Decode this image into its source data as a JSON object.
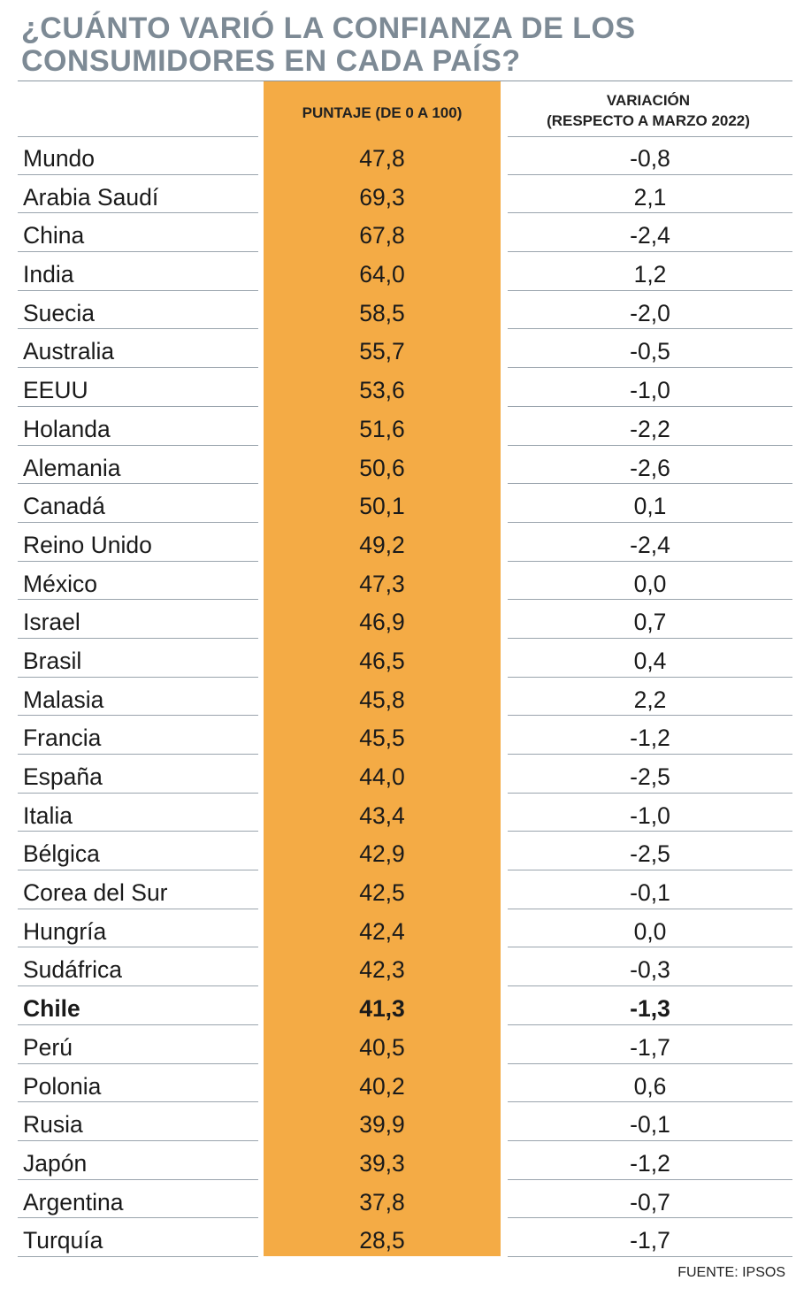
{
  "title": {
    "line1": "¿CUÁNTO VARIÓ LA CONFIANZA DE LOS",
    "line2": "CONSUMIDORES EN CADA PAÍS?"
  },
  "chart_data": {
    "type": "table",
    "columns": [
      "",
      "PUNTAJE (DE 0 A 100)",
      "VARIACIÓN\n(RESPECTO A MARZO 2022)"
    ],
    "header_score": "PUNTAJE (DE 0 A 100)",
    "header_var_line1": "VARIACIÓN",
    "header_var_line2": "(RESPECTO A MARZO 2022)",
    "rows": [
      {
        "country": "Mundo",
        "score": "47,8",
        "variation": "-0,8"
      },
      {
        "country": "Arabia Saudí",
        "score": "69,3",
        "variation": "2,1"
      },
      {
        "country": "China",
        "score": "67,8",
        "variation": "-2,4"
      },
      {
        "country": "India",
        "score": "64,0",
        "variation": "1,2"
      },
      {
        "country": "Suecia",
        "score": "58,5",
        "variation": "-2,0"
      },
      {
        "country": "Australia",
        "score": "55,7",
        "variation": "-0,5"
      },
      {
        "country": "EEUU",
        "score": "53,6",
        "variation": "-1,0"
      },
      {
        "country": "Holanda",
        "score": "51,6",
        "variation": "-2,2"
      },
      {
        "country": "Alemania",
        "score": "50,6",
        "variation": "-2,6"
      },
      {
        "country": "Canadá",
        "score": "50,1",
        "variation": "0,1"
      },
      {
        "country": "Reino Unido",
        "score": "49,2",
        "variation": "-2,4"
      },
      {
        "country": "México",
        "score": "47,3",
        "variation": "0,0"
      },
      {
        "country": "Israel",
        "score": "46,9",
        "variation": "0,7"
      },
      {
        "country": "Brasil",
        "score": "46,5",
        "variation": "0,4"
      },
      {
        "country": "Malasia",
        "score": "45,8",
        "variation": "2,2"
      },
      {
        "country": "Francia",
        "score": "45,5",
        "variation": "-1,2"
      },
      {
        "country": "España",
        "score": "44,0",
        "variation": "-2,5"
      },
      {
        "country": "Italia",
        "score": "43,4",
        "variation": "-1,0"
      },
      {
        "country": "Bélgica",
        "score": "42,9",
        "variation": "-2,5"
      },
      {
        "country": "Corea del Sur",
        "score": "42,5",
        "variation": "-0,1"
      },
      {
        "country": "Hungría",
        "score": "42,4",
        "variation": "0,0"
      },
      {
        "country": "Sudáfrica",
        "score": "42,3",
        "variation": "-0,3"
      },
      {
        "country": "Chile",
        "score": "41,3",
        "variation": "-1,3",
        "bold": true
      },
      {
        "country": "Perú",
        "score": "40,5",
        "variation": "-1,7"
      },
      {
        "country": "Polonia",
        "score": "40,2",
        "variation": "0,6"
      },
      {
        "country": "Rusia",
        "score": "39,9",
        "variation": "-0,1"
      },
      {
        "country": "Japón",
        "score": "39,3",
        "variation": "-1,2"
      },
      {
        "country": "Argentina",
        "score": "37,8",
        "variation": "-0,7"
      },
      {
        "country": "Turquía",
        "score": "28,5",
        "variation": "-1,7"
      }
    ]
  },
  "colors": {
    "title": "#7d8a95",
    "highlight_column": "#f4ab45",
    "rule": "#9aa4ad"
  },
  "source": "FUENTE: IPSOS"
}
